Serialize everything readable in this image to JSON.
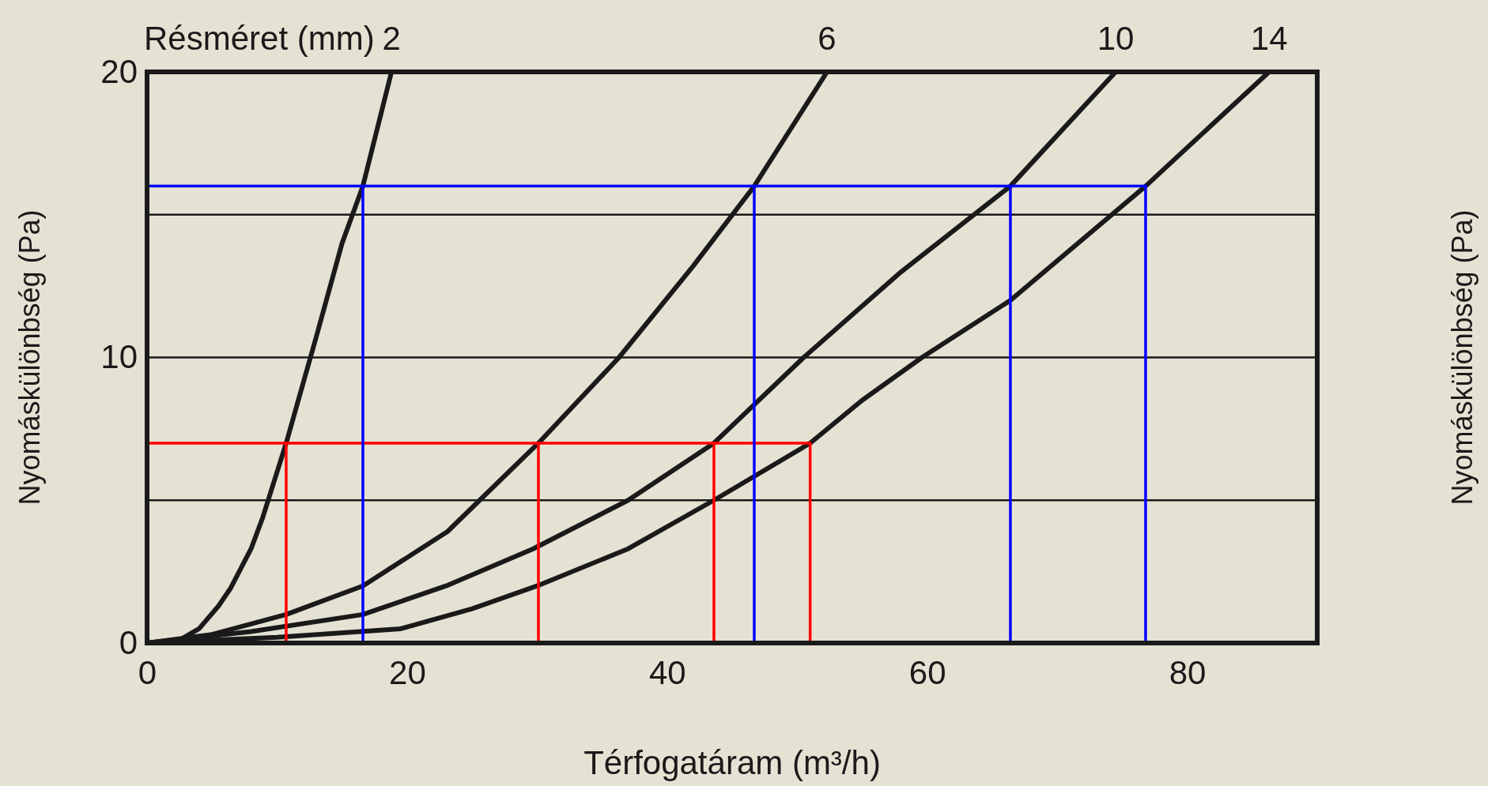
{
  "chart_data": {
    "type": "line",
    "xlabel": "Térfogatáram (m³/h)",
    "ylabel": "Nyomáskülönbség (Pa)",
    "y2label": "Nyomáskülönbség (Pa)",
    "legend_title": "Résméret (mm)",
    "xlim": [
      0,
      90
    ],
    "xticks": [
      0,
      20,
      40,
      60,
      80
    ],
    "ylim": [
      0,
      20
    ],
    "yticks": [
      0,
      {
        "value": 5,
        "label": null
      },
      10,
      {
        "value": 15,
        "label": null
      },
      20
    ],
    "grid": "y",
    "line_style": "solid",
    "marker": "none",
    "series": [
      {
        "name": "2",
        "color": "#1a1a1a",
        "x": [
          0,
          2.3,
          4,
          5.5,
          6.4,
          8,
          8.9,
          10.7,
          13,
          15,
          16.6,
          18.8
        ],
        "values": [
          0,
          0.05,
          0.5,
          1.3,
          1.9,
          3.3,
          4.4,
          7,
          10.7,
          14,
          16,
          20
        ]
      },
      {
        "name": "6",
        "color": "#1a1a1a",
        "x": [
          0,
          5,
          10.7,
          16.6,
          23.1,
          30.1,
          36.3,
          42,
          46.7,
          52.3
        ],
        "values": [
          0,
          0.3,
          1,
          2,
          3.9,
          7,
          10,
          13.2,
          16,
          20
        ]
      },
      {
        "name": "10",
        "color": "#1a1a1a",
        "x": [
          0,
          8,
          16.6,
          23,
          29.7,
          37,
          43.6,
          50.5,
          58,
          66.4,
          74.5
        ],
        "values": [
          0,
          0.4,
          1,
          2,
          3.3,
          5,
          7,
          10,
          13,
          16,
          20
        ]
      },
      {
        "name": "14",
        "color": "#1a1a1a",
        "x": [
          0,
          10,
          19.5,
          25,
          30,
          37,
          43.6,
          51,
          55,
          59.6,
          66.4,
          76.8,
          86.3
        ],
        "values": [
          0,
          0.2,
          0.5,
          1.2,
          2,
          3.3,
          5,
          7,
          8.5,
          10,
          12,
          16,
          20
        ]
      },
      {
        "color": "#ff0000",
        "x": [
          0,
          51
        ],
        "values": [
          7,
          7
        ]
      },
      {
        "color": "#ff0000",
        "x": [
          10.7,
          10.7
        ],
        "values": [
          7,
          0
        ]
      },
      {
        "color": "#ff0000",
        "x": [
          30.1,
          30.1
        ],
        "values": [
          7,
          0
        ]
      },
      {
        "color": "#ff0000",
        "x": [
          43.6,
          43.6
        ],
        "values": [
          7,
          0
        ]
      },
      {
        "color": "#ff0000",
        "x": [
          51,
          51
        ],
        "values": [
          7,
          0
        ]
      },
      {
        "color": "#0000ff",
        "x": [
          0,
          76.8
        ],
        "values": [
          16,
          16
        ]
      },
      {
        "color": "#0000ff",
        "x": [
          16.6,
          16.6
        ],
        "values": [
          16,
          0
        ]
      },
      {
        "color": "#0000ff",
        "x": [
          46.7,
          46.7
        ],
        "values": [
          16,
          0
        ]
      },
      {
        "color": "#0000ff",
        "x": [
          66.4,
          66.4
        ],
        "values": [
          16,
          0
        ]
      },
      {
        "color": "#0000ff",
        "x": [
          76.8,
          76.8
        ],
        "values": [
          16,
          0
        ]
      }
    ]
  }
}
